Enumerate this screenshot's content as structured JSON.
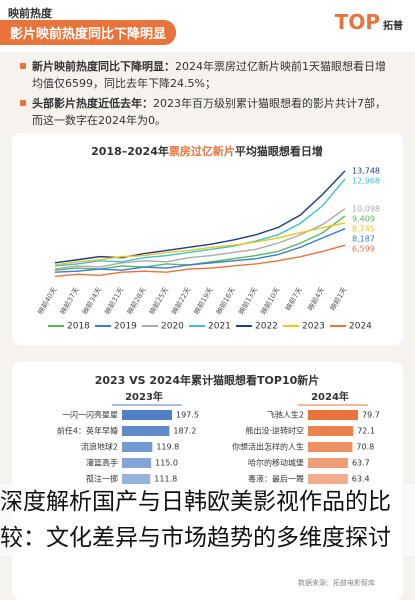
{
  "header": {
    "section": "映前热度",
    "title": "影片映前热度同比下降明显",
    "logo": "TOP",
    "logo_sub": "拓普"
  },
  "notes": [
    {
      "heading": "新片映前热度同比下降明显：",
      "text": "2024年票房过亿新片映前1天猫眼想看日增均值仅6599，同比去年下降24.5%；"
    },
    {
      "heading": "头部影片热度近低去年：",
      "text": "2023年百万级别累计猫眼想看的影片共计7部，而这一数字在2024年为0。"
    }
  ],
  "chart_data": [
    {
      "type": "line",
      "title": [
        "2018–2024年",
        "票房过亿新片",
        "平均猫眼想看日增"
      ],
      "categories": [
        "映前40天",
        "映前37天",
        "映前34天",
        "映前31天",
        "映前28天",
        "映前25天",
        "映前22天",
        "映前19天",
        "映前16天",
        "映前13天",
        "映前10天",
        "映前7天",
        "映前4天",
        "映前1天"
      ],
      "series": [
        {
          "name": "2018",
          "color": "#5cb85c",
          "values": [
            4200,
            4400,
            4300,
            4600,
            4500,
            4800,
            4700,
            5000,
            5300,
            5600,
            6000,
            6800,
            7800,
            9409
          ],
          "value_labels": [
            null,
            null,
            null,
            null,
            null,
            null,
            null,
            null,
            null,
            null,
            null,
            null,
            null,
            "9,409"
          ]
        },
        {
          "name": "2019",
          "color": "#3a7bd5",
          "values": [
            4000,
            4100,
            4300,
            4200,
            4500,
            4400,
            4700,
            4900,
            5100,
            5300,
            5700,
            6400,
            7300,
            8187
          ],
          "value_labels": [
            null,
            null,
            null,
            null,
            null,
            null,
            null,
            null,
            null,
            null,
            null,
            null,
            null,
            "8,187"
          ]
        },
        {
          "name": "2020",
          "color": "#aaaaaa",
          "values": [
            4300,
            4600,
            4500,
            4900,
            5100,
            5000,
            5400,
            5600,
            5900,
            6200,
            6800,
            7600,
            8600,
            10098
          ],
          "value_labels": [
            null,
            null,
            null,
            null,
            null,
            null,
            null,
            null,
            null,
            null,
            null,
            null,
            null,
            "10,098"
          ]
        },
        {
          "name": "2021",
          "color": "#3ec1d3",
          "values": [
            4600,
            4800,
            5100,
            5000,
            5400,
            5600,
            5900,
            6200,
            6500,
            7000,
            7600,
            8700,
            10400,
            12968
          ],
          "value_labels": [
            null,
            null,
            null,
            null,
            null,
            null,
            null,
            null,
            null,
            null,
            null,
            null,
            null,
            "12,968"
          ]
        },
        {
          "name": "2022",
          "color": "#1f3c88",
          "values": [
            4900,
            5200,
            5500,
            5400,
            5800,
            6100,
            6400,
            6700,
            7100,
            7600,
            8300,
            9500,
            11500,
            13748
          ],
          "value_labels": [
            null,
            null,
            null,
            null,
            null,
            null,
            null,
            null,
            null,
            null,
            null,
            null,
            null,
            "13,748"
          ]
        },
        {
          "name": "2023",
          "color": "#f0c419",
          "values": [
            4700,
            5000,
            5200,
            5500,
            5600,
            5900,
            6100,
            6400,
            6600,
            6900,
            7300,
            7800,
            8300,
            8745
          ],
          "value_labels": [
            null,
            null,
            null,
            null,
            null,
            null,
            null,
            null,
            null,
            null,
            null,
            null,
            null,
            "8,745"
          ]
        },
        {
          "name": "2024",
          "color": "#e8743b",
          "values": [
            3600,
            3800,
            3700,
            4000,
            4100,
            4000,
            4300,
            4400,
            4600,
            4800,
            5100,
            5500,
            6000,
            6599
          ],
          "value_labels": [
            null,
            null,
            null,
            null,
            null,
            null,
            null,
            null,
            null,
            null,
            null,
            null,
            null,
            "6,599"
          ]
        }
      ]
    },
    {
      "type": "barh",
      "title": "2023 VS 2024年累计猫眼想看TOP10新片",
      "series": [
        {
          "name": "2023年",
          "color": "#4f7fc4",
          "categories": [
            "一闪一闪亮星星",
            "前任4：英年早婚",
            "流浪地球2",
            "灌篮高手",
            "孤注一掷"
          ],
          "values": [
            197.5,
            187.2,
            119.8,
            115.0,
            111.8
          ],
          "value_labels": [
            "197.5",
            "187.2",
            "119.8",
            "115.0",
            "111.8"
          ]
        },
        {
          "name": "2024年",
          "color": "#e8743b",
          "categories": [
            "飞驰人生2",
            "熊出没·逆转时空",
            "你想活出怎样的人生",
            "哈尔的移动城堡",
            "毒液：最后一舞"
          ],
          "values": [
            79.7,
            72.1,
            70.8,
            63.7,
            63.4
          ]
        }
      ]
    }
  ],
  "source": "数据来源：拓普电影智库",
  "caption": "深度解析国产与日韩欧美影视作品的比较：文化差异与市场趋势的多维度探讨"
}
